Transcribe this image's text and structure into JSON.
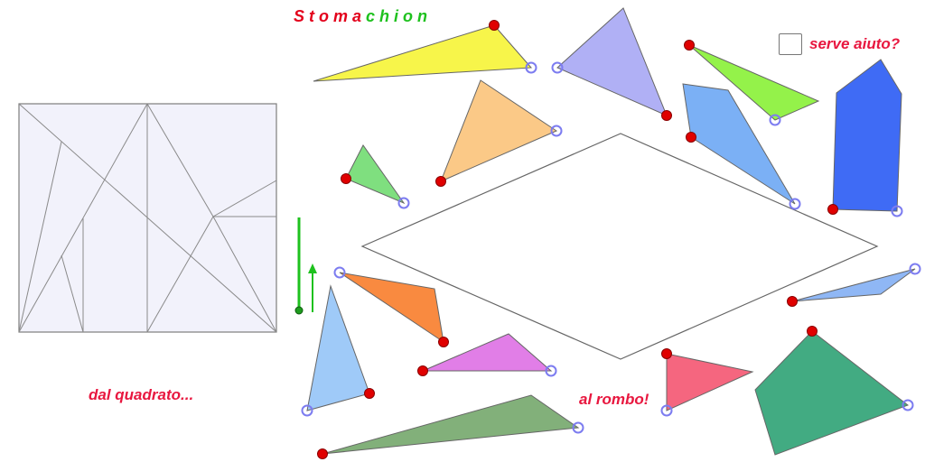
{
  "title": {
    "part1": "Stoma",
    "part2": "chion"
  },
  "labels": {
    "from_square": "dal quadrato...",
    "to_rhombus": "al rombo!",
    "help": "serve aiuto?"
  },
  "colors": {
    "title_red": "#e3001b",
    "title_green": "#1ec11e",
    "label_red": "#e8173f",
    "handle_red": "#e00000",
    "handle_ring": "#7c7cf0",
    "slider_green": "#1ec11e",
    "square_fill": "#f2f2fb",
    "rhombus_fill": "#ffffff"
  },
  "help_checkbox": {
    "checked": false
  },
  "pieces": [
    {
      "name": "yellow",
      "color": "#f7f54a"
    },
    {
      "name": "lavender",
      "color": "#b0b0f5"
    },
    {
      "name": "lime",
      "color": "#94f24a"
    },
    {
      "name": "blue",
      "color": "#3f6bf5"
    },
    {
      "name": "light-orange",
      "color": "#fbc987"
    },
    {
      "name": "sky-blue",
      "color": "#7bb0f5"
    },
    {
      "name": "green",
      "color": "#7fdf7f"
    },
    {
      "name": "orange",
      "color": "#f98a40"
    },
    {
      "name": "pale-blue",
      "color": "#9fcaf8"
    },
    {
      "name": "pale-blue-sliver",
      "color": "#8fb7f5"
    },
    {
      "name": "pink",
      "color": "#f5667f"
    },
    {
      "name": "magenta",
      "color": "#e17ee7"
    },
    {
      "name": "teal",
      "color": "#42ab82"
    },
    {
      "name": "olive-green",
      "color": "#82b07a"
    }
  ]
}
